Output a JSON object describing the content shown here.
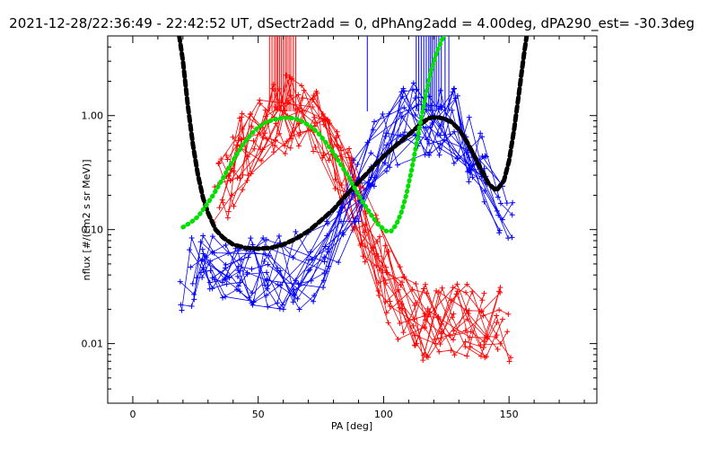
{
  "chart_data": {
    "type": "line",
    "title": "2021-12-28/22:36:49 - 22:42:52 UT, dSectr2add = 0, dPhAng2add = 4.00deg, dPA290_est= -30.3deg",
    "xlabel": "PA [deg]",
    "ylabel": "nflux [#/(cm2 s sr MeV)]",
    "xlim": [
      -10,
      185
    ],
    "ylim": [
      0.003,
      5
    ],
    "yscale": "log",
    "xticks": [
      0,
      50,
      100,
      150
    ],
    "xtick_labels": [
      "0",
      "50",
      "100",
      "150"
    ],
    "yticks": [
      0.01,
      0.1,
      1.0
    ],
    "ytick_labels": [
      "0.01",
      "0.10",
      "1.00"
    ],
    "grid": false,
    "colors": {
      "red": "#ff0000",
      "blue": "#0000ff",
      "black": "#000000",
      "green": "#00e000"
    },
    "red_marker_x": [
      54.5,
      55.5,
      56.5,
      57.2,
      57.8,
      58.5,
      59.2,
      60.0,
      60.8,
      61.5,
      62.3,
      63.0,
      64.0,
      65.0
    ],
    "blue_marker_x": [
      93.5,
      113,
      114,
      115,
      116,
      117,
      118,
      118.7,
      119.4,
      120.2,
      121,
      122,
      123,
      124.5,
      126
    ],
    "series": [
      {
        "color": "black",
        "style": "thick-dashed",
        "x": [
          18,
          20,
          22,
          24,
          26,
          28,
          30,
          33,
          36,
          40,
          45,
          50,
          55,
          60,
          65,
          70,
          75,
          80,
          85,
          90,
          95,
          100,
          105,
          110,
          115,
          118,
          121,
          124,
          127,
          130,
          133,
          136,
          139,
          142,
          145,
          148,
          150,
          152,
          154,
          156,
          158
        ],
        "y": [
          6.0,
          3.0,
          1.2,
          0.55,
          0.3,
          0.19,
          0.14,
          0.1,
          0.085,
          0.074,
          0.069,
          0.068,
          0.069,
          0.074,
          0.083,
          0.097,
          0.12,
          0.15,
          0.2,
          0.26,
          0.34,
          0.44,
          0.55,
          0.68,
          0.85,
          0.95,
          0.97,
          0.94,
          0.88,
          0.76,
          0.6,
          0.45,
          0.33,
          0.25,
          0.22,
          0.27,
          0.4,
          0.75,
          1.6,
          3.5,
          7.0
        ]
      },
      {
        "color": "green",
        "style": "thick-dotted",
        "x": [
          20,
          23,
          26,
          29,
          32,
          35,
          38,
          41,
          44,
          47,
          50,
          53,
          56,
          59,
          62,
          65,
          68,
          71,
          74,
          77,
          80,
          83,
          86,
          89,
          92,
          95,
          98,
          101,
          103,
          105,
          107,
          109,
          111,
          113,
          115,
          117,
          119,
          121,
          123,
          125,
          126
        ],
        "y": [
          0.105,
          0.115,
          0.13,
          0.16,
          0.2,
          0.26,
          0.34,
          0.44,
          0.56,
          0.68,
          0.79,
          0.87,
          0.92,
          0.95,
          0.96,
          0.94,
          0.88,
          0.8,
          0.7,
          0.58,
          0.47,
          0.37,
          0.29,
          0.22,
          0.17,
          0.135,
          0.11,
          0.097,
          0.097,
          0.11,
          0.14,
          0.2,
          0.32,
          0.55,
          0.95,
          1.6,
          2.5,
          3.5,
          4.5,
          5.5,
          6.0
        ]
      }
    ]
  }
}
